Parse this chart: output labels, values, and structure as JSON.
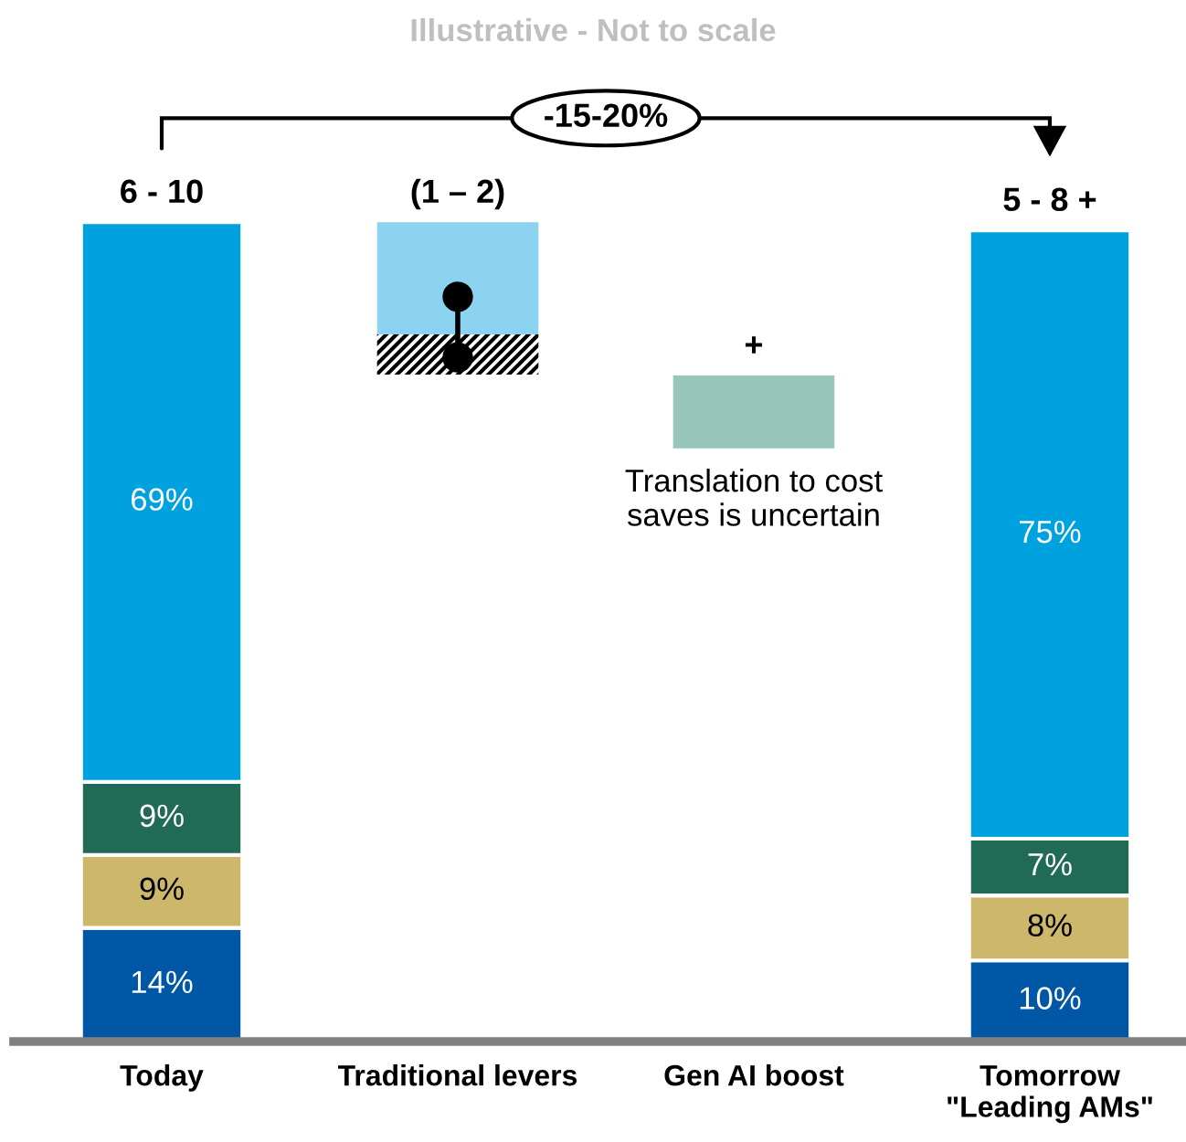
{
  "chart_data": {
    "type": "bar",
    "title": "Illustrative - Not to scale",
    "categories": [
      "Today",
      "Traditional levers",
      "Gen AI boost",
      "Tomorrow\n\"Leading AMs\""
    ],
    "stacked": true,
    "series": [
      {
        "color": "#0057a5",
        "values": [
          14,
          null,
          null,
          10
        ],
        "value_labels": [
          "14%",
          null,
          null,
          "10%"
        ]
      },
      {
        "color": "#cdb76a",
        "values": [
          9,
          null,
          null,
          8
        ],
        "value_labels": [
          "9%",
          null,
          null,
          "8%"
        ]
      },
      {
        "color": "#216a55",
        "values": [
          9,
          null,
          null,
          7
        ],
        "value_labels": [
          "9%",
          null,
          null,
          "7%"
        ]
      },
      {
        "color": "#00a1df",
        "values": [
          69,
          null,
          null,
          75
        ],
        "value_labels": [
          "69%",
          null,
          null,
          "75%"
        ]
      }
    ],
    "totals": [
      "6 - 10",
      null,
      null,
      "5 - 8 +"
    ],
    "annotations": [
      "(1 – 2)",
      "+",
      "-15-20%",
      "Translation to cost\nsaves is uncertain"
    ],
    "grid": false,
    "legend": false
  }
}
